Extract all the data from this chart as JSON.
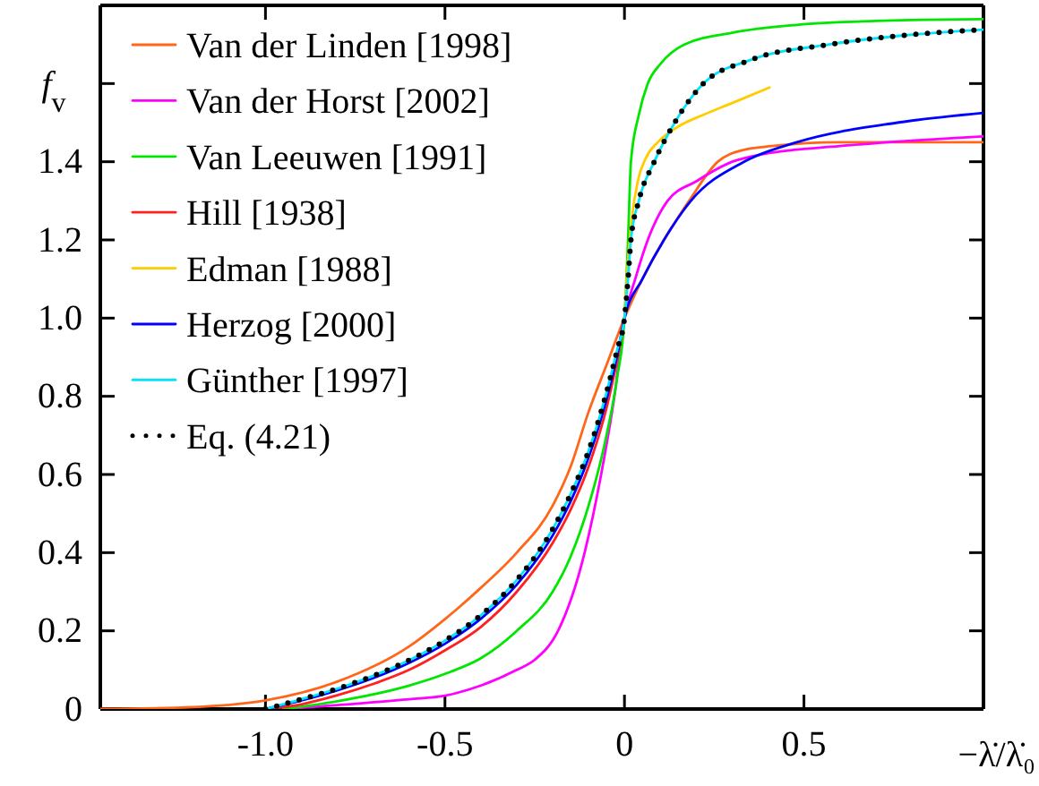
{
  "chart_data": {
    "type": "line",
    "xlabel": "−λ̇/λ̇₀",
    "ylabel": "f$_{v}$",
    "xlim": [
      -1.46,
      1.0
    ],
    "ylim": [
      0,
      1.8
    ],
    "xticks": [
      {
        "value": -1.0,
        "label": "-1.0"
      },
      {
        "value": -0.5,
        "label": "-0.5"
      },
      0,
      {
        "value": 0.5,
        "label": "0.5"
      },
      {
        "value": 1.0,
        "label": null
      }
    ],
    "yticks": [
      0,
      {
        "value": 0.2,
        "label": "0.2"
      },
      {
        "value": 0.4,
        "label": "0.4"
      },
      {
        "value": 0.6,
        "label": "0.6"
      },
      {
        "value": 0.8,
        "label": "0.8"
      },
      {
        "value": 1.0,
        "label": "1.0"
      },
      {
        "value": 1.2,
        "label": "1.2"
      },
      {
        "value": 1.4,
        "label": "1.4"
      },
      {
        "value": 1.6,
        "label": null
      }
    ],
    "grid": false,
    "legend": "top left",
    "marker": "none",
    "series": [
      {
        "name": "Van der Linden [1998]",
        "color": "#ff6619",
        "x": [
          -1.46,
          -1.2,
          -1.0,
          -0.8,
          -0.6,
          -0.5,
          -0.4,
          -0.3,
          -0.2,
          -0.15,
          -0.1,
          -0.05,
          0,
          0.05,
          0.11,
          0.18,
          0.26,
          0.33,
          0.41,
          0.6,
          1.0
        ],
        "values": [
          0,
          0.005,
          0.022,
          0.07,
          0.16,
          0.23,
          0.31,
          0.4,
          0.52,
          0.62,
          0.76,
          0.88,
          1.0,
          1.1,
          1.2,
          1.3,
          1.4,
          1.43,
          1.44,
          1.45,
          1.45
        ]
      },
      {
        "name": "Van der Horst [2002]",
        "color": "#ff00ff",
        "x": [
          -0.95,
          -0.8,
          -0.6,
          -0.5,
          -0.4,
          -0.3,
          -0.25,
          -0.185,
          -0.111,
          -0.065,
          -0.028,
          0,
          0.03,
          0.065,
          0.12,
          0.2,
          0.3,
          0.39,
          0.6,
          1.0
        ],
        "values": [
          0,
          0.01,
          0.025,
          0.034,
          0.06,
          0.1,
          0.126,
          0.2,
          0.4,
          0.6,
          0.8,
          1.0,
          1.1,
          1.2,
          1.3,
          1.35,
          1.4,
          1.42,
          1.44,
          1.465
        ]
      },
      {
        "name": "Van Leeuwen [1991]",
        "color": "#00e600",
        "x": [
          -0.95,
          -0.8,
          -0.6,
          -0.5,
          -0.4,
          -0.3,
          -0.2,
          -0.15,
          -0.1,
          -0.05,
          -0.02,
          0,
          0.01,
          0.018,
          0.04,
          0.065,
          0.1,
          0.167,
          0.3,
          0.48,
          0.7,
          1.0
        ],
        "values": [
          0,
          0.02,
          0.06,
          0.09,
          0.13,
          0.2,
          0.3,
          0.39,
          0.52,
          0.7,
          0.85,
          1.0,
          1.2,
          1.4,
          1.52,
          1.6,
          1.65,
          1.7,
          1.73,
          1.75,
          1.76,
          1.765
        ]
      },
      {
        "name": "Hill [1938]",
        "color": "#ff2020",
        "x": [
          -1.0,
          -0.9,
          -0.8,
          -0.7,
          -0.6,
          -0.5,
          -0.4,
          -0.3,
          -0.2,
          -0.15,
          -0.1,
          -0.05,
          -0.02,
          0
        ],
        "values": [
          0,
          0.012,
          0.035,
          0.064,
          0.1,
          0.15,
          0.21,
          0.3,
          0.425,
          0.51,
          0.62,
          0.77,
          0.895,
          1.0
        ]
      },
      {
        "name": "Edman [1988]",
        "color": "#ffcc00",
        "x": [
          0,
          0.01,
          0.02,
          0.037,
          0.06,
          0.093,
          0.15,
          0.22,
          0.3,
          0.404
        ],
        "values": [
          1.0,
          1.15,
          1.25,
          1.35,
          1.41,
          1.45,
          1.49,
          1.52,
          1.55,
          1.59
        ]
      },
      {
        "name": "Herzog [2000]",
        "color": "#0000ff",
        "x": [
          -1.0,
          -0.9,
          -0.8,
          -0.7,
          -0.6,
          -0.5,
          -0.4,
          -0.3,
          -0.2,
          -0.15,
          -0.1,
          -0.05,
          -0.02,
          0,
          0.05,
          0.11,
          0.185,
          0.333,
          0.48,
          0.76,
          1.0
        ],
        "values": [
          0,
          0.022,
          0.048,
          0.079,
          0.118,
          0.167,
          0.231,
          0.318,
          0.444,
          0.531,
          0.643,
          0.792,
          0.907,
          1.0,
          1.1,
          1.2,
          1.3,
          1.4,
          1.45,
          1.5,
          1.525
        ]
      },
      {
        "name": "Günther [1997]",
        "color": "#00e5ff",
        "x": [
          -1.0,
          -0.9,
          -0.8,
          -0.7,
          -0.6,
          -0.5,
          -0.4,
          -0.3,
          -0.2,
          -0.15,
          -0.1,
          -0.05,
          -0.02,
          0,
          0.01,
          0.018,
          0.04,
          0.083,
          0.14,
          0.22,
          0.35,
          0.57,
          0.8,
          1.0
        ],
        "values": [
          0,
          0.025,
          0.052,
          0.085,
          0.125,
          0.175,
          0.24,
          0.33,
          0.46,
          0.55,
          0.66,
          0.81,
          0.92,
          1.0,
          1.1,
          1.2,
          1.3,
          1.4,
          1.5,
          1.6,
          1.66,
          1.7,
          1.725,
          1.738
        ]
      },
      {
        "name": "Eq. (4.21)",
        "color": "#000000",
        "line_style": "dotted",
        "x": [
          -1.0,
          -0.9,
          -0.8,
          -0.7,
          -0.6,
          -0.5,
          -0.4,
          -0.3,
          -0.2,
          -0.15,
          -0.1,
          -0.05,
          -0.02,
          0,
          0.01,
          0.018,
          0.04,
          0.083,
          0.14,
          0.22,
          0.35,
          0.57,
          0.8,
          1.0
        ],
        "values": [
          0,
          0.025,
          0.052,
          0.085,
          0.125,
          0.175,
          0.24,
          0.33,
          0.46,
          0.55,
          0.66,
          0.81,
          0.92,
          1.0,
          1.1,
          1.2,
          1.3,
          1.4,
          1.5,
          1.6,
          1.66,
          1.7,
          1.725,
          1.738
        ]
      }
    ]
  }
}
